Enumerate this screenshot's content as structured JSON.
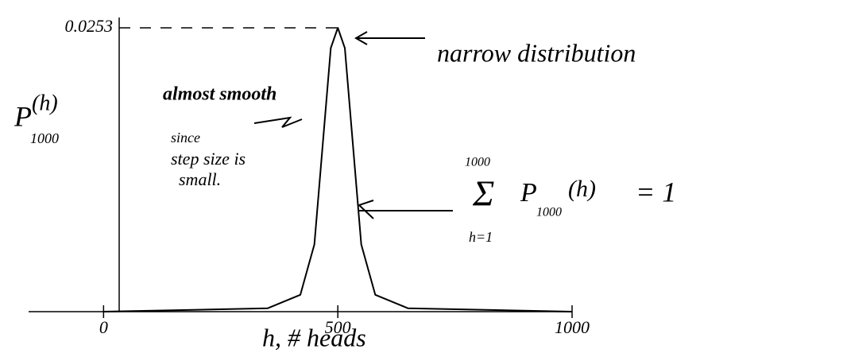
{
  "chart_data": {
    "type": "line",
    "x_label": "h, # heads",
    "y_label": {
      "symbol": "P",
      "subscript": "1000",
      "argument": "(h)"
    },
    "annotations": {
      "narrow": "narrow distribution",
      "smooth": [
        "almost smooth",
        "since",
        "step size is",
        "small."
      ],
      "sum": {
        "upper": "1000",
        "lower": "h=1",
        "symbol": "P",
        "subscript": "1000",
        "argument": "(h)",
        "equals": "= 1"
      }
    },
    "x": [
      0,
      350,
      420,
      450,
      470,
      485,
      500,
      515,
      530,
      550,
      580,
      650,
      1000
    ],
    "values": [
      0,
      0.0003,
      0.0015,
      0.006,
      0.016,
      0.0235,
      0.0253,
      0.0235,
      0.016,
      0.006,
      0.0015,
      0.0003,
      0
    ],
    "color": "#000000",
    "xlim": [
      -160,
      1000
    ],
    "xticks": [
      0,
      500,
      1000
    ],
    "ylim": [
      0,
      0.0253
    ],
    "yticks": [
      0.0253
    ]
  }
}
